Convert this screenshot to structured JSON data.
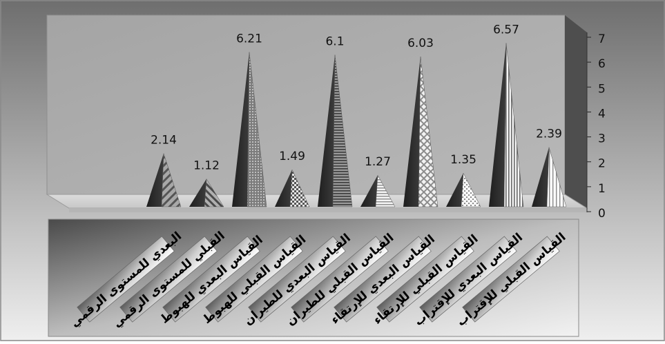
{
  "chart_data": {
    "type": "bar",
    "shape": "pyramid-3d",
    "categories": [
      "البعدي للمستوى الرقمي",
      "القبلي للمستوى الرقمي",
      "القياس البعدي للهبوط",
      "القياس القبلي للهبوط",
      "القياس البعدي للطيران",
      "القياس القبلي للطيران",
      "القياس البعدي للإرتقاء",
      "القياس القبلي للإرتقاء",
      "القياس البعدي للإقتراب",
      "القياس القبلي للإقتراب"
    ],
    "values": [
      2.14,
      1.12,
      6.21,
      1.49,
      6.1,
      1.27,
      6.03,
      1.35,
      6.57,
      2.39
    ],
    "data_labels": [
      "2.14",
      "1.12",
      "6.21",
      "1.49",
      "6.1",
      "1.27",
      "6.03",
      "1.35",
      "6.57",
      "2.39"
    ],
    "y_ticks": [
      "0",
      "1",
      "2",
      "3",
      "4",
      "5",
      "6",
      "7"
    ],
    "ylim": [
      0,
      7
    ],
    "title": "",
    "xlabel": "",
    "ylabel": "",
    "grid": false,
    "legend": "none",
    "y_axis_side": "right"
  }
}
